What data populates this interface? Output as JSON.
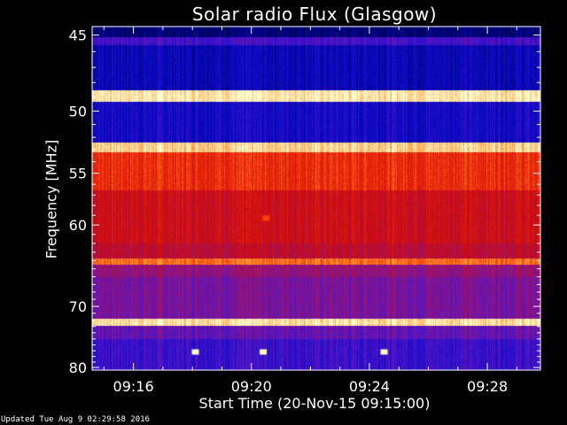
{
  "chart_data": {
    "type": "heatmap",
    "title": "Solar radio Flux (Glasgow)",
    "xlabel": "Start Time (20-Nov-15 09:15:00)",
    "ylabel": "Frequency [MHz]",
    "x_ticks": [
      "09:16",
      "09:20",
      "09:24",
      "09:28"
    ],
    "x_tick_minutes": [
      1,
      5,
      9,
      13
    ],
    "xlim_minutes": [
      -0.4,
      14.8
    ],
    "y_ticks": [
      45,
      50,
      55,
      60,
      70,
      80
    ],
    "ylim": [
      44.5,
      80.5
    ],
    "y_scale": "reciprocal",
    "horizontal_bands": [
      {
        "freq": 45.3,
        "level": "low"
      },
      {
        "freq": 48.9,
        "level": "very-high"
      },
      {
        "freq": 52.8,
        "level": "very-high"
      },
      {
        "freq": 54.5,
        "level": "high"
      },
      {
        "freq": 64.0,
        "level": "high"
      },
      {
        "freq": 72.5,
        "level": "very-high"
      }
    ],
    "bursts": [
      {
        "minute": 3.1,
        "freq": 77.2,
        "level": "very-high"
      },
      {
        "minute": 5.4,
        "freq": 77.2,
        "level": "very-high"
      },
      {
        "minute": 5.5,
        "freq": 59.3,
        "level": "high"
      },
      {
        "minute": 9.5,
        "freq": 77.2,
        "level": "very-high"
      }
    ],
    "colors": {
      "low": "#0000cc",
      "mid": "#cc0000",
      "high": "#ff4000",
      "very-high": "#ffffc0"
    }
  },
  "footer": {
    "updated": "Updated Tue Aug  9 02:29:58 2016"
  }
}
